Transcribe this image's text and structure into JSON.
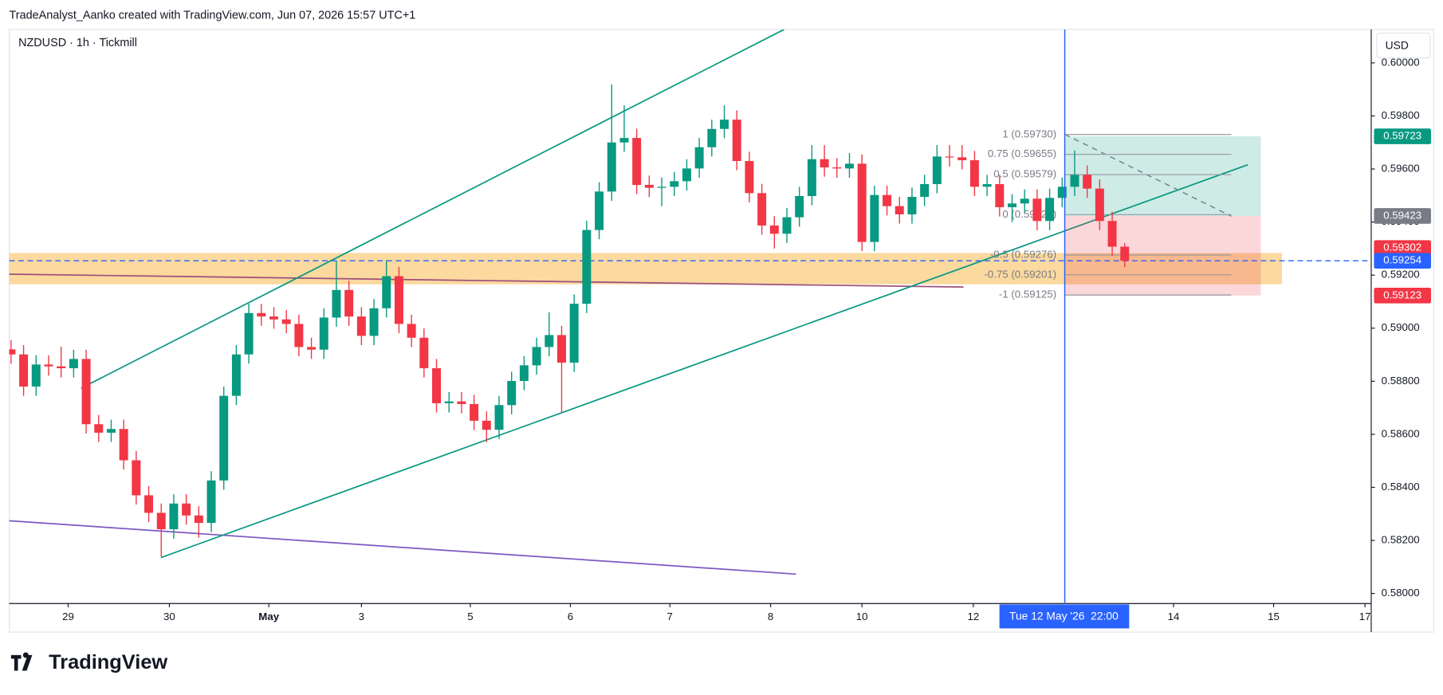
{
  "header": {
    "credit": "TradeAnalyst_Aanko created with TradingView.com, Jun 07, 2026 15:57 UTC+1",
    "logo": "TradingView"
  },
  "chart_data": {
    "type": "candlestick",
    "title": "NZDUSD · 1h · Tickmill",
    "currency": "USD",
    "crosshair_label": "Tue 12 May '26  22:00",
    "up_color": "#089981",
    "down_color": "#f23645",
    "grid": false,
    "open": [
      0.5892,
      0.58901,
      0.5878,
      0.58863,
      0.58856,
      0.58849,
      0.58884,
      0.58638,
      0.58606,
      0.5862,
      0.58502,
      0.5837,
      0.58304,
      0.58242,
      0.58339,
      0.58294,
      0.58266,
      0.58426,
      0.58745,
      0.58901,
      0.59057,
      0.59044,
      0.59033,
      0.59016,
      0.58929,
      0.58919,
      0.5904,
      0.59144,
      0.59044,
      0.58971,
      0.59075,
      0.59196,
      0.59016,
      0.58964,
      0.58849,
      0.58717,
      0.58724,
      0.58714,
      0.58651,
      0.58617,
      0.5871,
      0.58801,
      0.5886,
      0.58929,
      0.58974,
      0.5887,
      0.59092,
      0.5937,
      0.59515,
      0.597,
      0.59717,
      0.5954,
      0.59529,
      0.59533,
      0.59554,
      0.59602,
      0.59682,
      0.59751,
      0.59786,
      0.5963,
      0.59509,
      0.59387,
      0.59356,
      0.59418,
      0.59498,
      0.59637,
      0.59606,
      0.59602,
      0.5962,
      0.59325,
      0.59502,
      0.5946,
      0.59429,
      0.59495,
      0.59543,
      0.59647,
      0.59644,
      0.59633,
      0.59533,
      0.59543,
      0.59456,
      0.5947,
      0.59488,
      0.59404,
      0.59491,
      0.59533,
      0.59578,
      0.59526,
      0.59404,
      0.59307
    ],
    "high": [
      0.58955,
      0.58936,
      0.58898,
      0.58898,
      0.5893,
      0.58919,
      0.58919,
      0.58673,
      0.58655,
      0.58655,
      0.58537,
      0.58405,
      0.58339,
      0.58374,
      0.58374,
      0.58329,
      0.58461,
      0.5878,
      0.58936,
      0.59092,
      0.59092,
      0.59079,
      0.59068,
      0.59051,
      0.58964,
      0.59075,
      0.59255,
      0.59179,
      0.59079,
      0.5911,
      0.59255,
      0.59231,
      0.59051,
      0.58999,
      0.58884,
      0.58759,
      0.58759,
      0.58749,
      0.58686,
      0.58745,
      0.58836,
      0.58895,
      0.58964,
      0.5906,
      0.59009,
      0.59127,
      0.59405,
      0.5955,
      0.59918,
      0.5984,
      0.59752,
      0.59575,
      0.59568,
      0.59589,
      0.59637,
      0.59717,
      0.59786,
      0.5984,
      0.59821,
      0.59665,
      0.59544,
      0.59422,
      0.59453,
      0.59533,
      0.5969,
      0.5969,
      0.59641,
      0.5966,
      0.59655,
      0.59537,
      0.59537,
      0.59495,
      0.5953,
      0.59578,
      0.5969,
      0.5969,
      0.5969,
      0.59668,
      0.59578,
      0.59578,
      0.59505,
      0.59523,
      0.59523,
      0.59526,
      0.59568,
      0.5967,
      0.59613,
      0.59561,
      0.59439,
      0.5932
    ],
    "low": [
      0.58866,
      0.58745,
      0.58745,
      0.58821,
      0.58814,
      0.58814,
      0.58603,
      0.58571,
      0.58571,
      0.58467,
      0.58335,
      0.58269,
      0.58138,
      0.58207,
      0.58259,
      0.5821,
      0.58231,
      0.58391,
      0.5871,
      0.58866,
      0.59009,
      0.58998,
      0.58981,
      0.58894,
      0.58884,
      0.58884,
      0.59005,
      0.59009,
      0.58936,
      0.58936,
      0.5904,
      0.58981,
      0.58929,
      0.58814,
      0.58682,
      0.58682,
      0.58679,
      0.58616,
      0.5857,
      0.58582,
      0.58675,
      0.58766,
      0.58825,
      0.58894,
      0.5868,
      0.58835,
      0.59057,
      0.59335,
      0.5948,
      0.59665,
      0.59505,
      0.59494,
      0.5946,
      0.59498,
      0.59519,
      0.59567,
      0.59647,
      0.59716,
      0.59595,
      0.59474,
      0.59352,
      0.593,
      0.59321,
      0.59383,
      0.59463,
      0.59571,
      0.59567,
      0.59567,
      0.5929,
      0.5929,
      0.59425,
      0.59394,
      0.59394,
      0.5946,
      0.59508,
      0.59609,
      0.59598,
      0.59498,
      0.59498,
      0.59421,
      0.594,
      0.59435,
      0.59369,
      0.59369,
      0.59456,
      0.59498,
      0.59491,
      0.59369,
      0.59272,
      0.5923
    ],
    "close": [
      0.58901,
      0.5878,
      0.58863,
      0.58856,
      0.58849,
      0.58884,
      0.58638,
      0.58606,
      0.5862,
      0.58502,
      0.5837,
      0.58304,
      0.58242,
      0.58339,
      0.58294,
      0.58266,
      0.58426,
      0.58745,
      0.58901,
      0.59057,
      0.59044,
      0.59033,
      0.59016,
      0.58929,
      0.58919,
      0.5904,
      0.59144,
      0.59044,
      0.58971,
      0.59075,
      0.59196,
      0.59016,
      0.58964,
      0.58849,
      0.58717,
      0.58724,
      0.58714,
      0.58651,
      0.58617,
      0.5871,
      0.58801,
      0.5886,
      0.58929,
      0.58974,
      0.5887,
      0.59092,
      0.5937,
      0.59515,
      0.597,
      0.59717,
      0.5954,
      0.59529,
      0.59533,
      0.59554,
      0.59602,
      0.59682,
      0.59751,
      0.59786,
      0.5963,
      0.59509,
      0.59387,
      0.59356,
      0.59418,
      0.59498,
      0.59637,
      0.59606,
      0.59602,
      0.5962,
      0.59325,
      0.59502,
      0.5946,
      0.59429,
      0.59495,
      0.59543,
      0.59647,
      0.59644,
      0.59633,
      0.59533,
      0.59543,
      0.59456,
      0.5947,
      0.59488,
      0.59404,
      0.59491,
      0.59533,
      0.59578,
      0.59526,
      0.59404,
      0.59307,
      0.59254
    ],
    "xlim": [
      -0.15,
      108.7
    ],
    "xticks": [
      {
        "value": 4.56,
        "label": "29"
      },
      {
        "value": 12.65,
        "label": "30"
      },
      {
        "value": 20.6,
        "label": "May"
      },
      {
        "value": 28.0,
        "label": "3"
      },
      {
        "value": 36.7,
        "label": "5"
      },
      {
        "value": 44.7,
        "label": "6"
      },
      {
        "value": 52.65,
        "label": "7"
      },
      {
        "value": 60.7,
        "label": "8"
      },
      {
        "value": 68.0,
        "label": "10"
      },
      {
        "value": 76.9,
        "label": "12"
      },
      {
        "value": 92.9,
        "label": "14"
      },
      {
        "value": 100.9,
        "label": "15"
      },
      {
        "value": 108.2,
        "label": "17"
      }
    ],
    "ylim": [
      0.57962,
      0.60126
    ],
    "yticks": [
      {
        "value": 0.58,
        "label": "0.58000"
      },
      {
        "value": 0.582,
        "label": "0.58200"
      },
      {
        "value": 0.584,
        "label": "0.58400"
      },
      {
        "value": 0.586,
        "label": "0.58600"
      },
      {
        "value": 0.588,
        "label": "0.58800"
      },
      {
        "value": 0.59,
        "label": "0.59000"
      },
      {
        "value": 0.592,
        "label": "0.59200"
      },
      {
        "value": 0.594,
        "label": "0.59400"
      },
      {
        "value": 0.596,
        "label": "0.59600"
      },
      {
        "value": 0.598,
        "label": "0.59800"
      },
      {
        "value": 0.6,
        "label": "0.60000"
      }
    ],
    "fib_levels": [
      {
        "value": 0.5973,
        "label": "1 (0.59730)"
      },
      {
        "value": 0.59655,
        "label": "0.75 (0.59655)"
      },
      {
        "value": 0.59579,
        "label": "0.5 (0.59579)"
      },
      {
        "value": 0.59428,
        "label": "0 (0.59428)"
      },
      {
        "value": 0.59276,
        "label": "-0.5 (0.59276)"
      },
      {
        "value": 0.59201,
        "label": "-0.75 (0.59201)"
      },
      {
        "value": 0.59125,
        "label": "-1 (0.59125)"
      }
    ],
    "price_labels": [
      {
        "value": 0.59723,
        "color": "#089981"
      },
      {
        "value": 0.59423,
        "color": "#787b86"
      },
      {
        "value": 0.59302,
        "color": "#f23645"
      },
      {
        "value": 0.59254,
        "color": "#2962ff"
      },
      {
        "value": 0.59123,
        "color": "#f23645"
      }
    ]
  }
}
